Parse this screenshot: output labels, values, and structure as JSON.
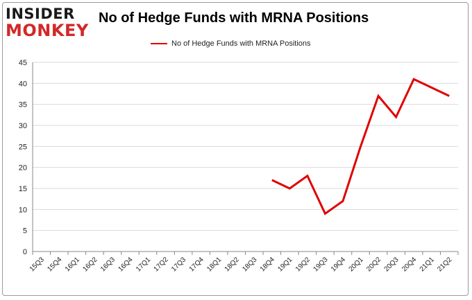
{
  "logo": {
    "line1": "INSIDER",
    "line2": "MONKEY"
  },
  "colors": {
    "series": "#e00000",
    "grid": "#d9d9d9",
    "axis": "#888888",
    "logo_red": "#d22828"
  },
  "chart_data": {
    "type": "line",
    "title": "No of Hedge Funds with MRNA Positions",
    "xlabel": "",
    "ylabel": "",
    "ylim": [
      0,
      45
    ],
    "yticks": [
      0,
      5,
      10,
      15,
      20,
      25,
      30,
      35,
      40,
      45
    ],
    "grid": true,
    "legend_position": "top",
    "categories": [
      "15Q3",
      "15Q4",
      "16Q1",
      "16Q2",
      "16Q3",
      "16Q4",
      "17Q1",
      "17Q2",
      "17Q3",
      "17Q4",
      "18Q1",
      "18Q2",
      "18Q3",
      "18Q4",
      "19Q1",
      "19Q2",
      "19Q3",
      "19Q4",
      "20Q1",
      "20Q2",
      "20Q3",
      "20Q4",
      "21Q1",
      "21Q2"
    ],
    "series": [
      {
        "name": "No of Hedge Funds with MRNA Positions",
        "values": [
          null,
          null,
          null,
          null,
          null,
          null,
          null,
          null,
          null,
          null,
          null,
          null,
          null,
          17,
          15,
          18,
          9,
          12,
          25,
          37,
          32,
          41,
          39,
          37
        ]
      }
    ]
  }
}
